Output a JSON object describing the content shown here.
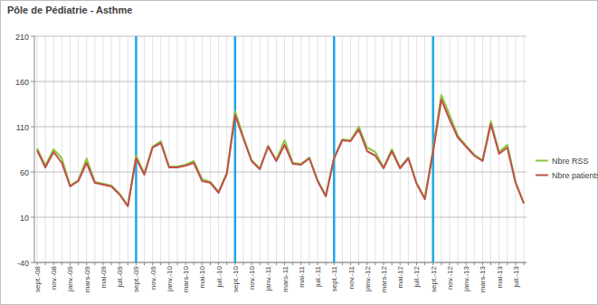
{
  "chart_data": {
    "type": "line",
    "title": "Pôle de Pédiatrie - Asthme",
    "categories": [
      "sept.-08",
      null,
      "nov.-08",
      null,
      "janv.-09",
      null,
      "mars-09",
      null,
      "mai-09",
      null,
      "juil.-09",
      null,
      "sept.-09",
      null,
      "nov.-09",
      null,
      "janv.-10",
      null,
      "mars-10",
      null,
      "mai-10",
      null,
      "juil.-10",
      null,
      "sept.-10",
      null,
      "nov.-10",
      null,
      "janv.-11",
      null,
      "mars-11",
      null,
      "mai-11",
      null,
      "juil.-11",
      null,
      "sept.-11",
      null,
      "nov.-11",
      null,
      "janv.-12",
      null,
      "mars-12",
      null,
      "mai-12",
      null,
      "juil.-12",
      null,
      "sept.-12",
      null,
      "nov.-12",
      null,
      "janv.-13",
      null,
      "mars-13",
      null,
      "mai-13",
      null,
      "juil.-13",
      null
    ],
    "series": [
      {
        "name": "Nbre RSS",
        "color": "#8dc63f",
        "values": [
          86,
          67,
          85,
          75,
          45,
          51,
          75,
          49,
          47,
          45,
          36,
          23,
          78,
          58,
          88,
          94,
          66,
          66,
          68,
          72,
          52,
          49,
          38,
          59,
          127,
          99,
          73,
          64,
          89,
          73,
          95,
          70,
          69,
          76,
          51,
          34,
          76,
          96,
          95,
          110,
          87,
          82,
          65,
          85,
          65,
          76,
          48,
          31,
          85,
          145,
          123,
          100,
          89,
          79,
          73,
          116,
          82,
          90,
          49,
          26
        ]
      },
      {
        "name": "Nbre patients",
        "color": "#c0504d",
        "values": [
          84,
          65,
          82,
          70,
          44,
          50,
          70,
          48,
          46,
          44,
          35,
          22,
          75,
          57,
          87,
          92,
          65,
          65,
          67,
          70,
          50,
          48,
          37,
          58,
          123,
          97,
          72,
          63,
          88,
          72,
          90,
          69,
          68,
          75,
          50,
          33,
          75,
          95,
          94,
          107,
          83,
          78,
          64,
          83,
          64,
          75,
          47,
          30,
          82,
          140,
          118,
          98,
          88,
          78,
          72,
          113,
          80,
          87,
          48,
          25
        ]
      }
    ],
    "vlines": [
      "sept.-09",
      "sept.-10",
      "sept.-11",
      "sept.-12"
    ],
    "ylim": [
      -40,
      210
    ],
    "yticks": [
      -40,
      10,
      60,
      110,
      160,
      210
    ],
    "grid": true,
    "legend": "right"
  }
}
